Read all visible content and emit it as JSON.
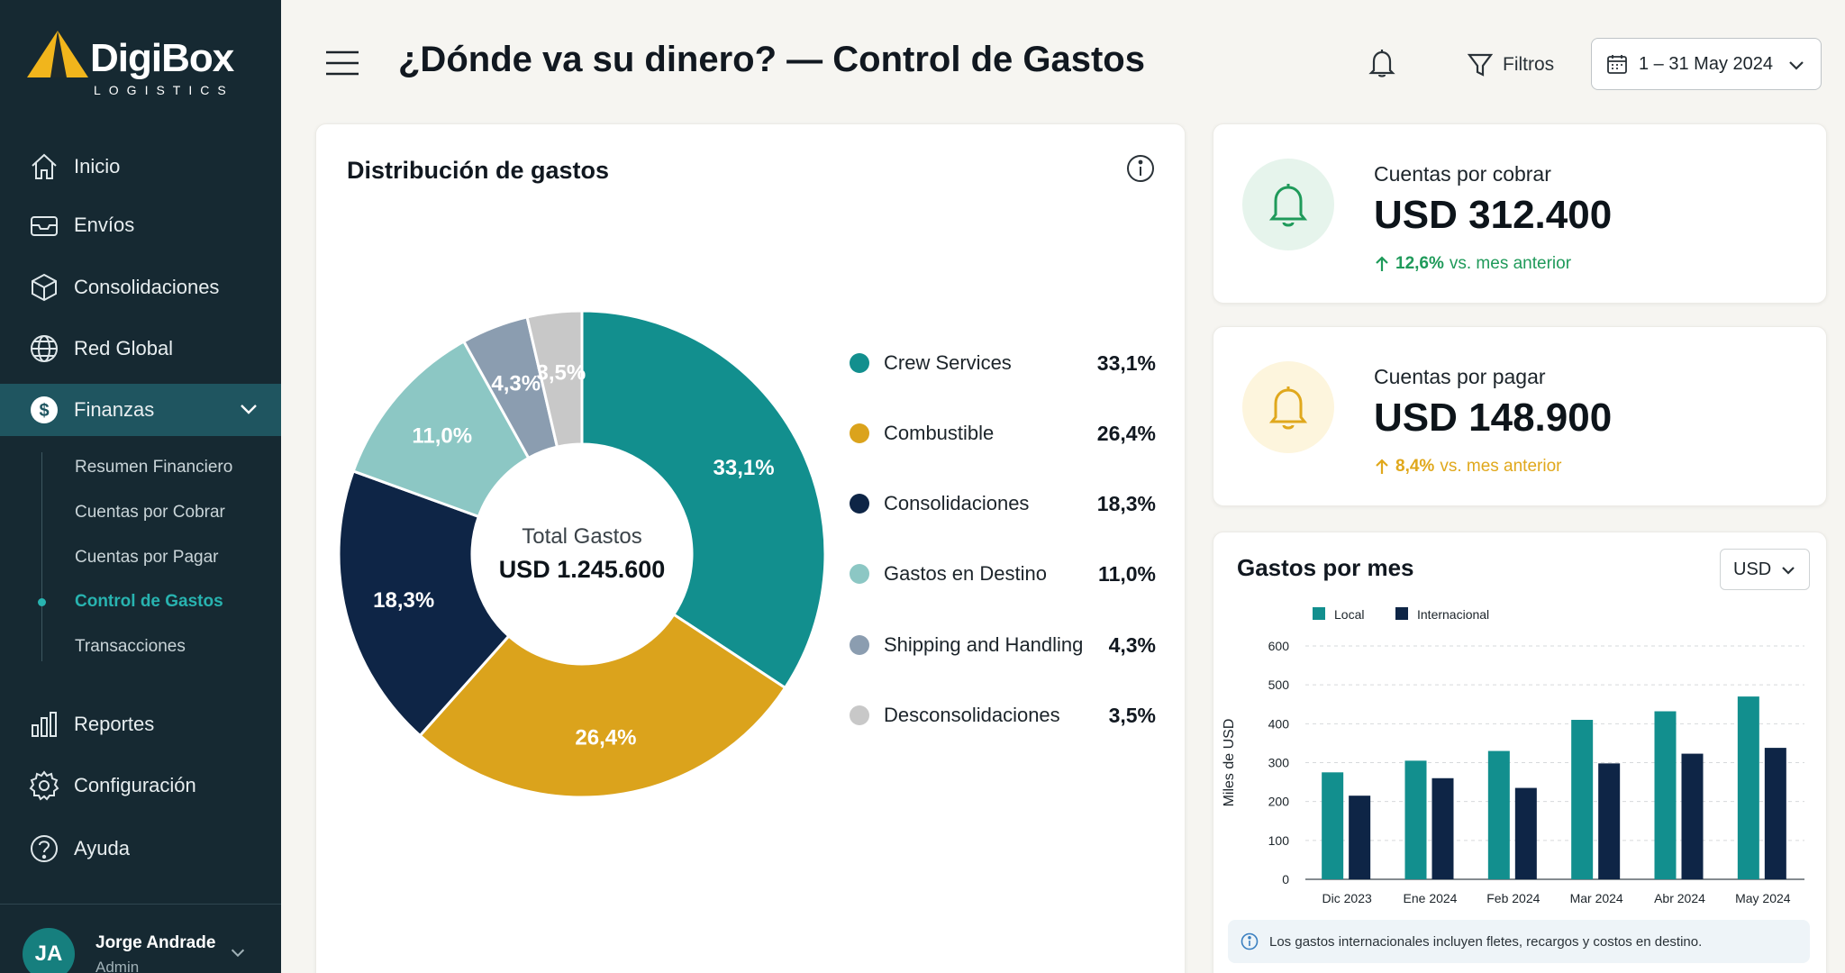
{
  "brand": {
    "name": "DigiBox",
    "sub": "LOGISTICS"
  },
  "nav": {
    "items": [
      {
        "label": "Inicio",
        "icon": "home-icon"
      },
      {
        "label": "Envíos",
        "icon": "inbox-icon"
      },
      {
        "label": "Consolidaciones",
        "icon": "box-icon"
      },
      {
        "label": "Red Global",
        "icon": "globe-icon"
      },
      {
        "label": "Finanzas",
        "icon": "dollar-icon"
      },
      {
        "label": "Reportes",
        "icon": "bar-chart-icon"
      },
      {
        "label": "Configuración",
        "icon": "gear-icon"
      },
      {
        "label": "Ayuda",
        "icon": "help-icon"
      }
    ],
    "finanzas_sub": [
      "Resumen Financiero",
      "Cuentas por Cobrar",
      "Cuentas por Pagar",
      "Control de Gastos",
      "Transacciones"
    ],
    "active_sub": "Control de Gastos"
  },
  "user": {
    "initials": "JA",
    "name": "Jorge Andrade",
    "role": "Admin"
  },
  "header": {
    "title": "¿Dónde va su dinero? — Control de Gastos",
    "filter_label": "Filtros",
    "date_range": "1 – 31 May 2024"
  },
  "distribution": {
    "title": "Distribución de gastos",
    "center_label": "Total Gastos",
    "center_value": "USD 1.245.600",
    "legend": [
      {
        "name": "Crew Services",
        "value": "33,1%"
      },
      {
        "name": "Combustible",
        "value": "26,4%"
      },
      {
        "name": "Consolidaciones",
        "value": "18,3%"
      },
      {
        "name": "Gastos en Destino",
        "value": "11,0%"
      },
      {
        "name": "Shipping and Handling",
        "value": "4,3%"
      },
      {
        "name": "Desconsolidaciones",
        "value": "3,5%"
      }
    ]
  },
  "receivable": {
    "label": "Cuentas por cobrar",
    "value": "USD 312.400",
    "trend_value": "12,6%",
    "trend_text": "vs. mes anterior",
    "color": "#1f9a5a"
  },
  "payable": {
    "label": "Cuentas por pagar",
    "value": "USD 148.900",
    "trend_value": "8,4%",
    "trend_text": "vs. mes anterior",
    "color": "#e0a81c"
  },
  "monthly": {
    "title": "Gastos por mes",
    "currency": "USD",
    "note": "Los gastos internacionales incluyen fletes, recargos y costos en destino."
  },
  "colors": {
    "teal": "#128f8e",
    "gold": "#dba31c",
    "navy": "#0e2546",
    "lightteal": "#8cc7c4",
    "slate": "#8b9db0",
    "grey": "#c8c8c8"
  },
  "chart_data": [
    {
      "type": "pie",
      "title": "Distribución de gastos",
      "categories": [
        "Crew Services",
        "Combustible",
        "Consolidaciones",
        "Gastos en Destino",
        "Shipping and Handling",
        "Desconsolidaciones"
      ],
      "values": [
        33.1,
        26.4,
        18.3,
        11.0,
        4.3,
        3.5
      ],
      "labels": [
        "33,1%",
        "26,4%",
        "18,3%",
        "11,0%",
        "4,3%",
        "3,5%"
      ],
      "colors": [
        "#128f8e",
        "#dba31c",
        "#0e2546",
        "#8cc7c4",
        "#8b9db0",
        "#c8c8c8"
      ],
      "legend": "right"
    },
    {
      "type": "bar",
      "title": "Gastos por mes",
      "categories": [
        "Dic 2023",
        "Ene 2024",
        "Feb 2024",
        "Mar 2024",
        "Abr 2024",
        "May 2024"
      ],
      "series": [
        {
          "name": "Local",
          "values": [
            275,
            305,
            330,
            410,
            432,
            470
          ],
          "color": "#128f8e"
        },
        {
          "name": "Internacional",
          "values": [
            215,
            260,
            235,
            298,
            323,
            338
          ],
          "color": "#0e2546"
        }
      ],
      "ylabel": "Miles de USD",
      "ylim": [
        0,
        600
      ],
      "yticks": [
        "0",
        "100",
        "200",
        "300",
        "400",
        "500",
        "600"
      ],
      "grid": true,
      "legend": "top-left"
    }
  ]
}
